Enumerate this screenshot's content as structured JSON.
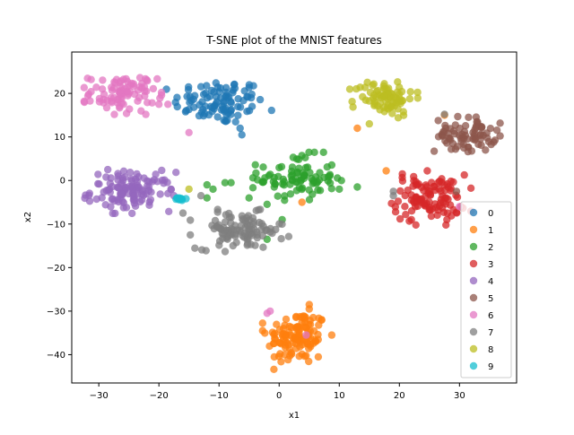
{
  "chart_data": {
    "type": "scatter",
    "title": "T-SNE plot of the MNIST features",
    "xlabel": "x1",
    "ylabel": "x2",
    "xlim": [
      -34.5,
      39.5
    ],
    "ylim": [
      -46.5,
      29.5
    ],
    "xticks": [
      -30,
      -20,
      -10,
      0,
      10,
      20,
      30
    ],
    "yticks": [
      -40,
      -30,
      -20,
      -10,
      0,
      10,
      20
    ],
    "grid": false,
    "legend_position": "lower right",
    "series": [
      {
        "name": "0",
        "color": "#1f77b4",
        "clusters": [
          {
            "cx": -10,
            "cy": 18,
            "sx": 3.8,
            "sy": 2.6,
            "n": 95
          }
        ],
        "points": [
          [
            -4.5,
            17
          ],
          [
            -6.5,
            12
          ],
          [
            -6.2,
            10.5
          ],
          [
            -7.5,
            22
          ]
        ]
      },
      {
        "name": "1",
        "color": "#ff7f0e",
        "clusters": [
          {
            "cx": 3,
            "cy": -36,
            "sx": 2.5,
            "sy": 3.2,
            "n": 120
          }
        ],
        "points": [
          [
            5,
            -28.5
          ],
          [
            5,
            -29.5
          ],
          [
            13,
            12
          ],
          [
            17.8,
            2.2
          ],
          [
            3.8,
            -5
          ],
          [
            27.5,
            15
          ]
        ]
      },
      {
        "name": "2",
        "color": "#2ca02c",
        "clusters": [
          {
            "cx": 3,
            "cy": 0.5,
            "sx": 3.2,
            "sy": 2.6,
            "n": 90
          }
        ],
        "points": [
          [
            -12,
            -1
          ],
          [
            -11,
            -2
          ],
          [
            -9,
            -0.5
          ],
          [
            -12,
            -4
          ],
          [
            -5,
            -4
          ],
          [
            -2,
            -13.5
          ],
          [
            13,
            -1.5
          ],
          [
            10,
            -2
          ],
          [
            0.5,
            -9
          ],
          [
            -8,
            -0.5
          ]
        ]
      },
      {
        "name": "3",
        "color": "#d62728",
        "clusters": [
          {
            "cx": 25,
            "cy": -4,
            "sx": 3.0,
            "sy": 2.7,
            "n": 105
          }
        ],
        "points": [
          [
            20.5,
            1.5
          ],
          [
            28,
            -7.5
          ],
          [
            22,
            -9
          ]
        ]
      },
      {
        "name": "4",
        "color": "#9467bd",
        "clusters": [
          {
            "cx": -24.5,
            "cy": -2.5,
            "sx": 3.4,
            "sy": 2.2,
            "n": 115
          }
        ],
        "points": [
          [
            -18,
            -2
          ],
          [
            -17.5,
            -3.5
          ],
          [
            -28.5,
            2.5
          ]
        ]
      },
      {
        "name": "5",
        "color": "#8c564b",
        "clusters": [
          {
            "cx": 31,
            "cy": 10.5,
            "sx": 2.5,
            "sy": 2.0,
            "n": 75
          }
        ],
        "points": [
          [
            29.5,
            -2.5
          ],
          [
            33.5,
            9.5
          ]
        ]
      },
      {
        "name": "6",
        "color": "#e377c2",
        "clusters": [
          {
            "cx": -26,
            "cy": 20,
            "sx": 2.8,
            "sy": 2.1,
            "n": 90
          }
        ],
        "points": [
          [
            -20,
            17.5
          ],
          [
            -18.5,
            17.5
          ],
          [
            -15,
            11
          ],
          [
            -2,
            -30.5
          ],
          [
            -1.5,
            -30
          ],
          [
            4.5,
            -35.5
          ],
          [
            30,
            -6
          ]
        ]
      },
      {
        "name": "7",
        "color": "#7f7f7f",
        "clusters": [
          {
            "cx": -6.5,
            "cy": -11.5,
            "sx": 3.6,
            "sy": 2.1,
            "n": 105
          }
        ],
        "points": [
          [
            -16,
            -7.5
          ],
          [
            -13,
            -3.5
          ],
          [
            19,
            -2.5
          ],
          [
            19,
            -3.5
          ],
          [
            27.5,
            15.2
          ]
        ]
      },
      {
        "name": "8",
        "color": "#bcbd22",
        "clusters": [
          {
            "cx": 17.5,
            "cy": 19,
            "sx": 2.5,
            "sy": 2.0,
            "n": 80
          }
        ],
        "points": [
          [
            15,
            13
          ],
          [
            -15,
            -2
          ]
        ]
      },
      {
        "name": "9",
        "color": "#17becf",
        "clusters": [
          {
            "cx": -16,
            "cy": -4.3,
            "sx": 0.6,
            "sy": 0.25,
            "n": 10
          }
        ],
        "points": [
          [
            -17,
            -4
          ]
        ]
      }
    ]
  }
}
